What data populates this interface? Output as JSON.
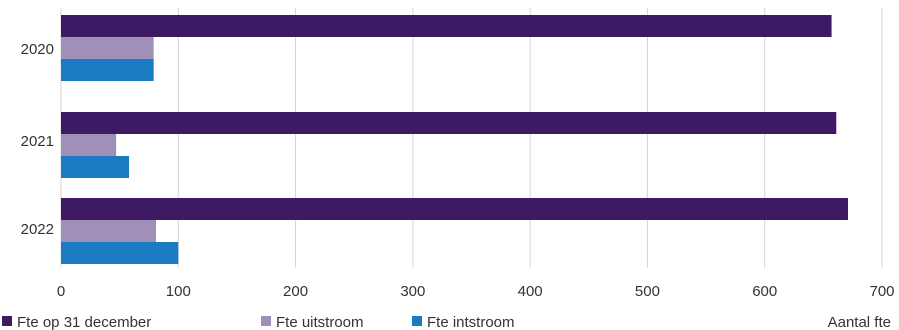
{
  "chart_data": {
    "type": "bar",
    "orientation": "horizontal",
    "categories": [
      "2020",
      "2021",
      "2022"
    ],
    "series": [
      {
        "name": "Fte op 31 december",
        "color": "#3d1a63",
        "values": [
          657,
          661,
          671
        ]
      },
      {
        "name": "Fte uitstroom",
        "color": "#a08fb8",
        "values": [
          79,
          47,
          81
        ]
      },
      {
        "name": "Fte intstroom",
        "color": "#1a7ac2",
        "values": [
          79,
          58,
          100
        ]
      }
    ],
    "xticks": [
      "0",
      "100",
      "200",
      "300",
      "400",
      "500",
      "600",
      "700"
    ],
    "xlim": [
      0,
      700
    ],
    "xlabel": "Aantal fte",
    "ylabel": "",
    "title": "",
    "grid": true,
    "legend_position": "bottom-left"
  }
}
